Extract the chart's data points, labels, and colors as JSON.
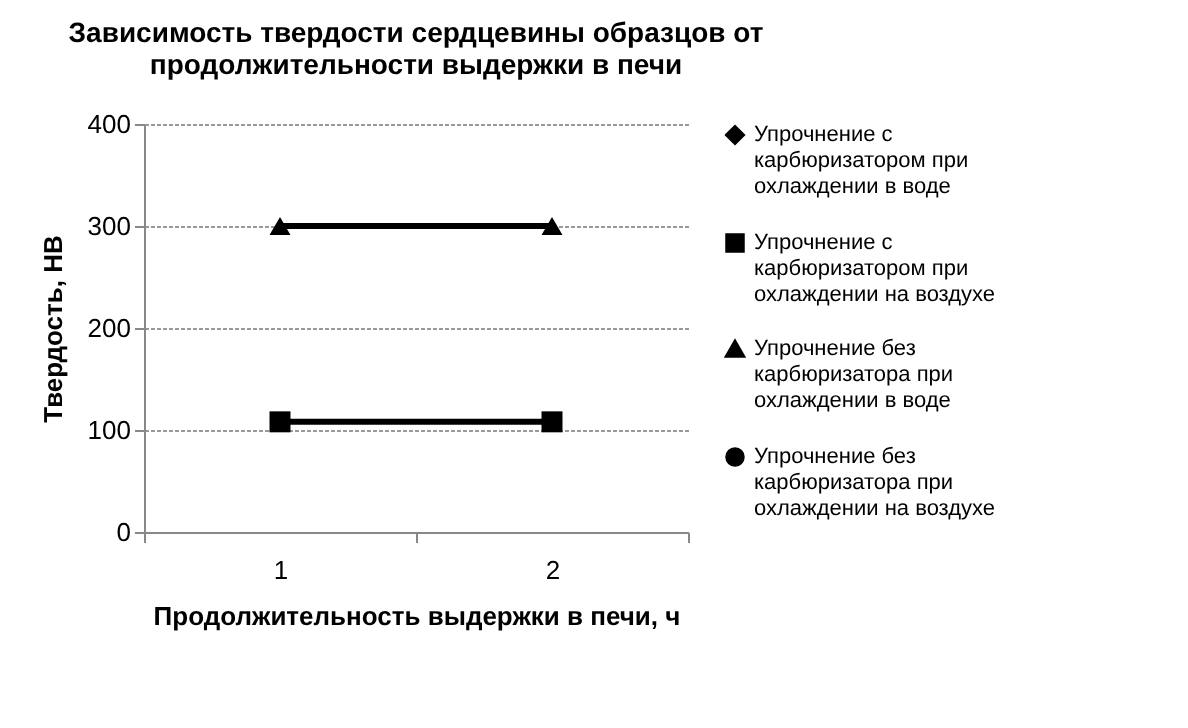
{
  "chart_data": {
    "type": "line",
    "title": "Зависимость твердости сердцевины образцов от продолжительности выдержки в печи",
    "xlabel": "Продолжительность выдержки в печи, ч",
    "ylabel": "Твердость, НВ",
    "categories": [
      "1",
      "2"
    ],
    "series": [
      {
        "name": "Упрочнение с карбюризатором при охлаждении в воде",
        "color": "#000000",
        "marker": "diamond",
        "values": [
          null,
          null
        ]
      },
      {
        "name": "Упрочнение с карбюризатором при охлаждении на воздухе",
        "color": "#000000",
        "marker": "square",
        "values": [
          108,
          108
        ]
      },
      {
        "name": "Упрочнение без карбюризатора при охлаждении в воде",
        "color": "#000000",
        "marker": "triangle",
        "values": [
          300,
          300
        ]
      },
      {
        "name": "Упрочнение без карбюризатора при охлаждении на воздухе",
        "color": "#000000",
        "marker": "circle",
        "values": [
          null,
          null
        ]
      }
    ],
    "ylim": [
      0,
      400
    ],
    "yticks": [
      0,
      100,
      200,
      300,
      400
    ],
    "grid": "y",
    "legend": "right"
  }
}
